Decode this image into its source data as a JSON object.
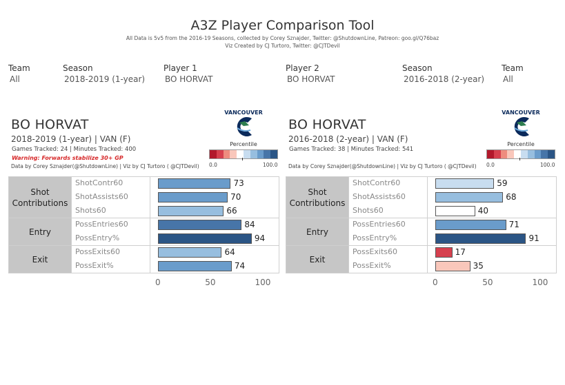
{
  "header": {
    "title": "A3Z Player Comparison Tool",
    "subtitle1": "All Data is 5v5 from the 2016-19 Seasons, collected by Corey Sznajder, Twitter: @ShutdownLine, Patreon: goo.gl/Q76baz",
    "subtitle2": "Viz Created by CJ Turtoro, Twitter: @CJTDevil"
  },
  "filters": {
    "team1_label": "Team",
    "team1_value": "All",
    "season1_label": "Season",
    "season1_value": "2018-2019 (1-year)",
    "player1_label": "Player 1",
    "player1_value": "BO HORVAT",
    "player2_label": "Player 2",
    "player2_value": "BO HORVAT",
    "season2_label": "Season",
    "season2_value": "2016-2018 (2-year)",
    "team2_label": "Team",
    "team2_value": "All"
  },
  "legend": {
    "title": "Percentile",
    "min_label": "0.0",
    "max_label": "100.0",
    "colors": [
      "#b2182b",
      "#d6404e",
      "#ee8c7f",
      "#f9c7bb",
      "#ffffff",
      "#c8ddf0",
      "#97bedf",
      "#6a9ccb",
      "#4775a8",
      "#2b5585"
    ]
  },
  "logo_text": "VANCOUVER",
  "categories": [
    "Shot Contributions",
    "Entry",
    "Exit"
  ],
  "axis_ticks": [
    "0",
    "50",
    "100"
  ],
  "players": [
    {
      "name": "BO HORVAT",
      "season_team": "2018-2019 (1-year) | VAN (F)",
      "stats": "Games Tracked: 24  | Minutes Tracked: 400",
      "warning": "Warning: Forwards stabilize 30+ GP",
      "credit": "Data by Corey Sznajder(@ShutdownLine) | Viz by CJ Turtoro ( @CJTDevil)",
      "metrics": [
        {
          "label": "ShotContr60",
          "value": 73
        },
        {
          "label": "ShotAssists60",
          "value": 70
        },
        {
          "label": "Shots60",
          "value": 66
        },
        {
          "label": "PossEntries60",
          "value": 84
        },
        {
          "label": "PossEntry%",
          "value": 94
        },
        {
          "label": "PossExits60",
          "value": 64
        },
        {
          "label": "PossExit%",
          "value": 74
        }
      ]
    },
    {
      "name": "BO HORVAT",
      "season_team": "2016-2018 (2-year) | VAN (F)",
      "stats": "Games Tracked: 38  | Minutes Tracked: 541",
      "warning": "",
      "credit": "Data by Corey Sznajder(@ShutdownLine) | Viz by CJ Turtoro ( @CJTDevil)",
      "metrics": [
        {
          "label": "ShotContr60",
          "value": 59
        },
        {
          "label": "ShotAssists60",
          "value": 68
        },
        {
          "label": "Shots60",
          "value": 40
        },
        {
          "label": "PossEntries60",
          "value": 71
        },
        {
          "label": "PossEntry%",
          "value": 91
        },
        {
          "label": "PossExits60",
          "value": 17
        },
        {
          "label": "PossExit%",
          "value": 35
        }
      ]
    }
  ]
}
